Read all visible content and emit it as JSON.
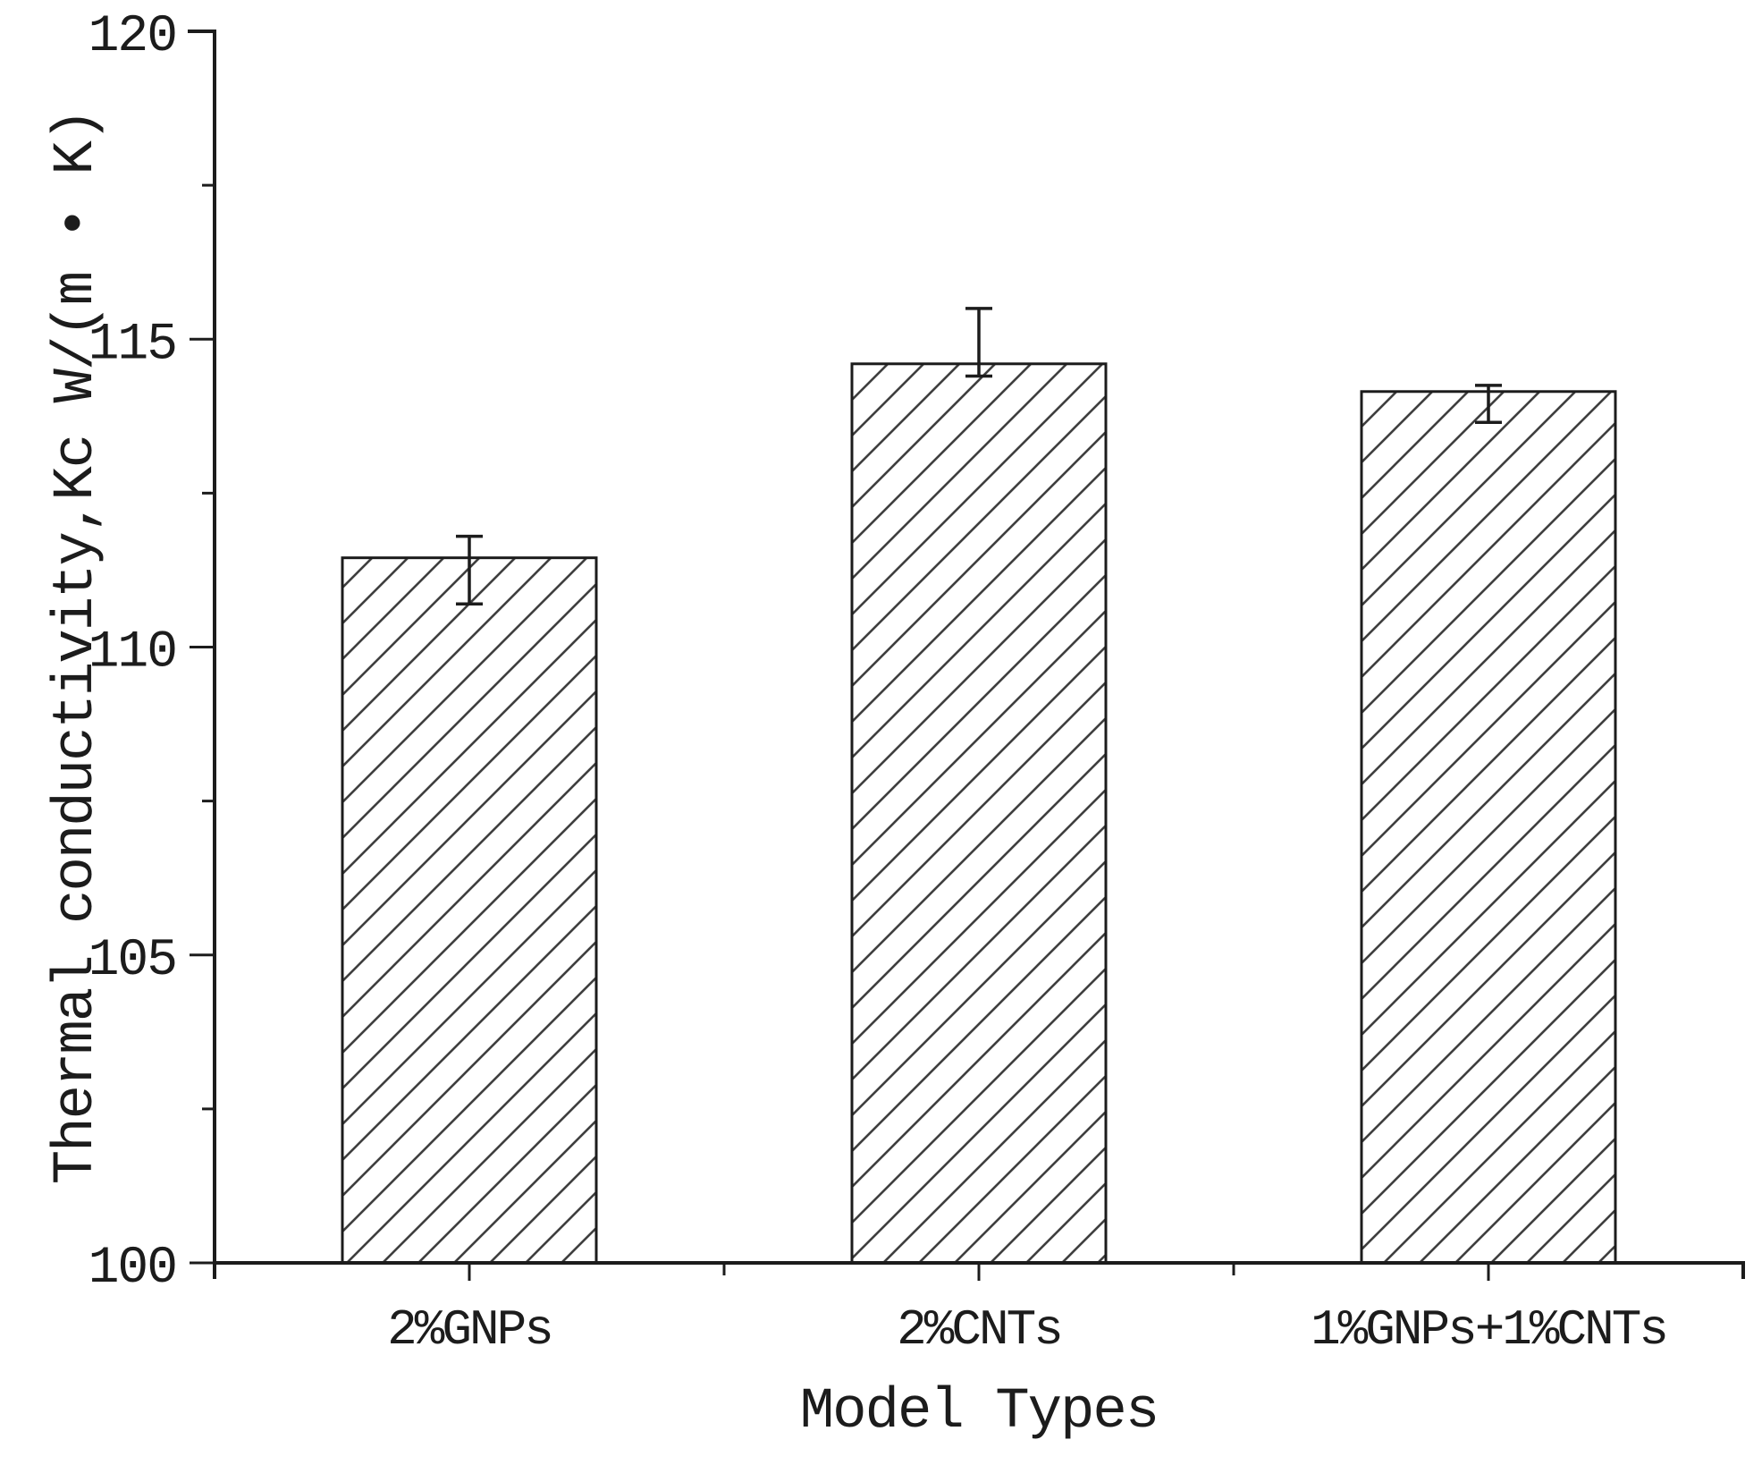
{
  "figure": {
    "background": "#ffffff",
    "ink_color": "#1c1c1c",
    "hatch_color": "#3f3f3f",
    "bar_face_color": "#ffffff"
  },
  "chart_data": {
    "type": "bar",
    "title": "",
    "xlabel": "Model Types",
    "ylabel": "Thermal conductivity,Kc W/(m • K)",
    "categories": [
      "2%GNPs",
      "2%CNTs",
      "1%GNPs+1%CNTs"
    ],
    "values": [
      111.45,
      114.6,
      114.15
    ],
    "error_bars": [
      {
        "upper": 111.8,
        "lower": 110.7
      },
      {
        "upper": 115.5,
        "lower": 114.4
      },
      {
        "upper": 114.25,
        "lower": 113.65
      }
    ],
    "ylim": [
      100,
      120
    ],
    "y_major_ticks": [
      100,
      105,
      110,
      115,
      120
    ],
    "y_tick_labels": [
      "100",
      "105",
      "110",
      "115",
      "120"
    ],
    "y_minor_ticks": [
      102.5,
      107.5,
      112.5,
      117.5
    ],
    "bar_style": "diagonal-hatch",
    "grid": false,
    "legend": null
  }
}
